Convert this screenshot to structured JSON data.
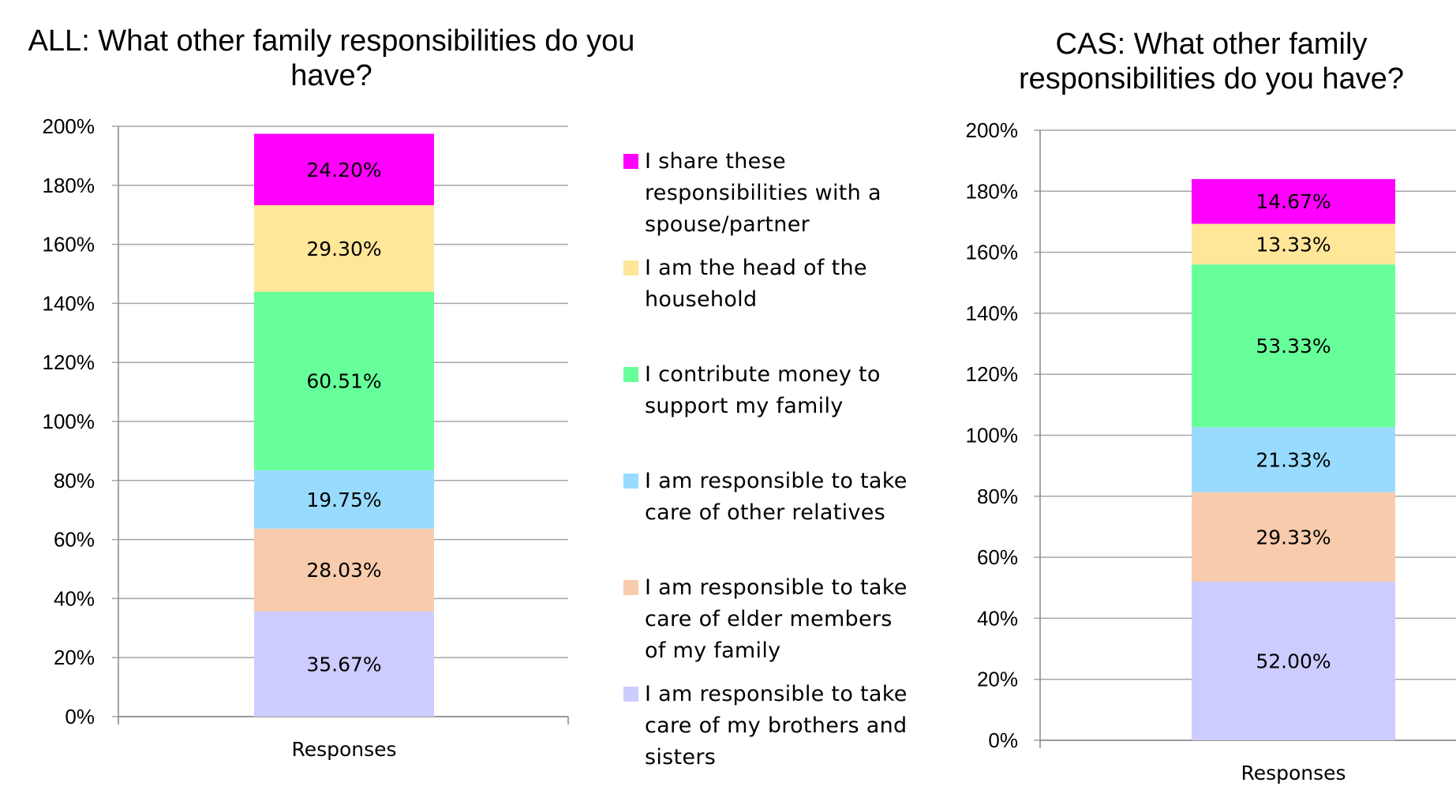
{
  "charts": {
    "left": {
      "title": "ALL:  What other family responsibilities do you\nhave?"
    },
    "right": {
      "title": "CAS:  What other family\nresponsibilities do you have?"
    }
  },
  "chart_data": [
    {
      "type": "bar",
      "stacked": true,
      "title": "ALL:  What other family responsibilities do you have?",
      "categories": [
        "Responses"
      ],
      "ylim": [
        0,
        200
      ],
      "yticks": [
        "0%",
        "20%",
        "40%",
        "60%",
        "80%",
        "100%",
        "120%",
        "140%",
        "160%",
        "180%",
        "200%"
      ],
      "grid": true,
      "legend": "right",
      "series": [
        {
          "name": "I am responsible to take care of my brothers and sisters",
          "values": [
            35.67
          ],
          "label": "35.67%",
          "color": "#ccccff"
        },
        {
          "name": "I am responsible to take care of elder members of my family",
          "values": [
            28.03
          ],
          "label": "28.03%",
          "color": "#f8cbad"
        },
        {
          "name": "I am responsible to take care of other relatives",
          "values": [
            19.75
          ],
          "label": "19.75%",
          "color": "#99dbff"
        },
        {
          "name": "I contribute money to support my family",
          "values": [
            60.51
          ],
          "label": "60.51%",
          "color": "#66ff99"
        },
        {
          "name": "I am the head of the household",
          "values": [
            29.3
          ],
          "label": "29.30%",
          "color": "#ffe699"
        },
        {
          "name": "I share these responsibilities with a spouse/partner",
          "values": [
            24.2
          ],
          "label": "24.20%",
          "color": "#ff00ff"
        }
      ]
    },
    {
      "type": "bar",
      "stacked": true,
      "title": "CAS:  What other family responsibilities do you have?",
      "categories": [
        "Responses"
      ],
      "ylim": [
        0,
        200
      ],
      "yticks": [
        "0%",
        "20%",
        "40%",
        "60%",
        "80%",
        "100%",
        "120%",
        "140%",
        "160%",
        "180%",
        "200%"
      ],
      "grid": true,
      "series": [
        {
          "name": "I am responsible to take care of my brothers and sisters",
          "values": [
            52.0
          ],
          "label": "52.00%",
          "color": "#ccccff"
        },
        {
          "name": "I am responsible to take care of elder members of my family",
          "values": [
            29.33
          ],
          "label": "29.33%",
          "color": "#f8cbad"
        },
        {
          "name": "I am responsible to take care of other relatives",
          "values": [
            21.33
          ],
          "label": "21.33%",
          "color": "#99dbff"
        },
        {
          "name": "I contribute money to support my family",
          "values": [
            53.33
          ],
          "label": "53.33%",
          "color": "#66ff99"
        },
        {
          "name": "I am the head of the household",
          "values": [
            13.33
          ],
          "label": "13.33%",
          "color": "#ffe699"
        },
        {
          "name": "I share these responsibilities with a spouse/partner",
          "values": [
            14.67
          ],
          "label": "14.67%",
          "color": "#ff00ff"
        }
      ]
    }
  ],
  "legend": {
    "items": [
      {
        "label": "I share these\nresponsibilities with a\nspouse/partner",
        "color": "#ff00ff"
      },
      {
        "label": "I am the head of the\nhousehold",
        "color": "#ffe699"
      },
      {
        "label": "I contribute money to\nsupport my family",
        "color": "#66ff99"
      },
      {
        "label": "I am responsible to take\ncare of other relatives",
        "color": "#99dbff"
      },
      {
        "label": "I am responsible to take\ncare of elder members\nof my family",
        "color": "#f8cbad"
      },
      {
        "label": "I am responsible to take\ncare of my brothers and\nsisters",
        "color": "#ccccff"
      }
    ]
  }
}
